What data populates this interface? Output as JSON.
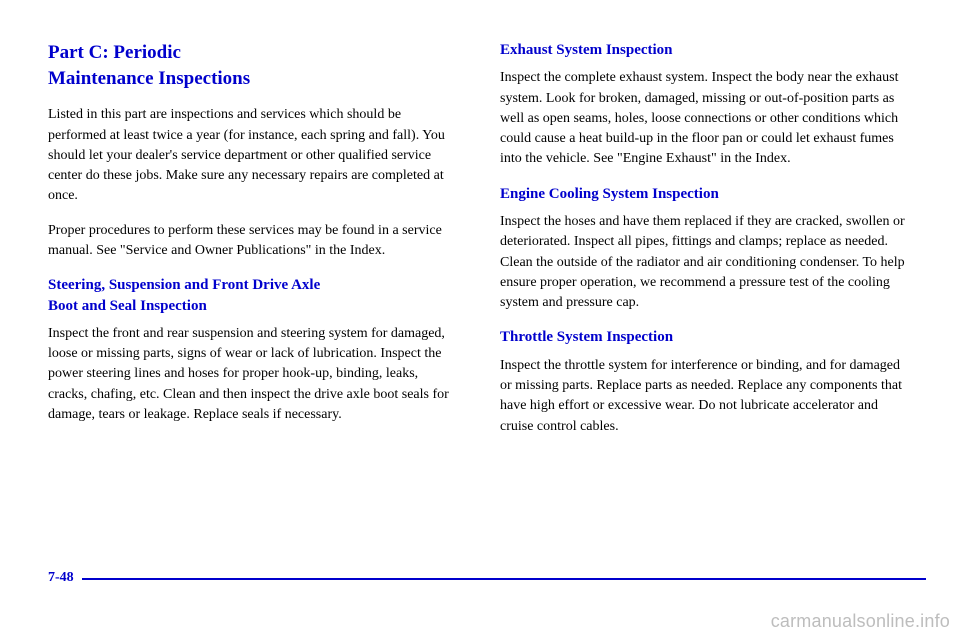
{
  "left": {
    "partTitleLine1": "Part C: Periodic",
    "partTitleLine2": "Maintenance Inspections",
    "intro": "Listed in this part are inspections and services which should be performed at least twice a year (for instance, each spring and fall). You should let your dealer's service department or other qualified service center do these jobs. Make sure any necessary repairs are completed at once.",
    "intro2": "Proper procedures to perform these services may be found in a service manual. See \"Service and Owner Publications\" in the Index.",
    "steeringTitleLine1": "Steering, Suspension and Front Drive Axle",
    "steeringTitleLine2": "Boot and Seal Inspection",
    "steeringBody": "Inspect the front and rear suspension and steering system for damaged, loose or missing parts, signs of wear or lack of lubrication. Inspect the power steering lines and hoses for proper hook-up, binding, leaks, cracks, chafing, etc. Clean and then inspect the drive axle boot seals for damage, tears or leakage. Replace seals if necessary."
  },
  "right": {
    "exhaustTitle": "Exhaust System Inspection",
    "exhaustBody": "Inspect the complete exhaust system. Inspect the body near the exhaust system. Look for broken, damaged, missing or out-of-position parts as well as open seams, holes, loose connections or other conditions which could cause a heat build-up in the floor pan or could let exhaust fumes into the vehicle. See \"Engine Exhaust\" in the Index.",
    "coolingTitle": "Engine Cooling System Inspection",
    "coolingBody": "Inspect the hoses and have them replaced if they are cracked, swollen or deteriorated. Inspect all pipes, fittings and clamps; replace as needed. Clean the outside of the radiator and air conditioning condenser. To help ensure proper operation, we recommend a pressure test of the cooling system and pressure cap.",
    "throttleTitle": "Throttle System Inspection",
    "throttleBody": "Inspect the throttle system for interference or binding, and for damaged or missing parts. Replace parts as needed. Replace any components that have high effort or excessive wear. Do not lubricate accelerator and cruise control cables."
  },
  "pageNumber": "7-48",
  "watermark": "carmanualsonline.info",
  "colors": {
    "accent": "#0000cc",
    "text": "#000000",
    "watermark": "#bdbdbd",
    "background": "#ffffff"
  },
  "typography": {
    "partTitleSize": 19,
    "subTitleSize": 15,
    "bodySize": 14,
    "fontFamily": "Times New Roman"
  }
}
